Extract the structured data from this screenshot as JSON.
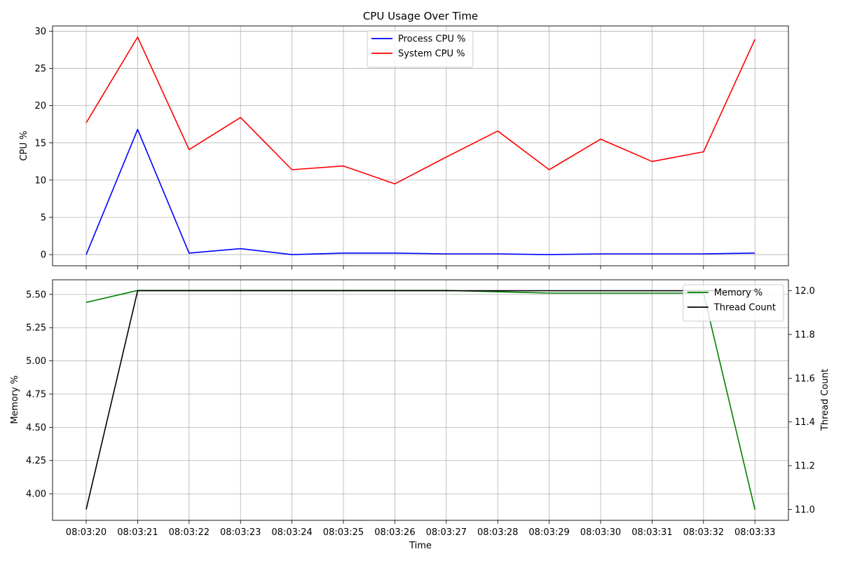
{
  "chart_data": [
    {
      "type": "line",
      "title": "CPU Usage Over Time",
      "xlabel": "",
      "ylabel": "CPU %",
      "categories": [
        "08:03:20",
        "08:03:21",
        "08:03:22",
        "08:03:23",
        "08:03:24",
        "08:03:25",
        "08:03:26",
        "08:03:27",
        "08:03:28",
        "08:03:29",
        "08:03:30",
        "08:03:31",
        "08:03:32",
        "08:03:33"
      ],
      "ylim": [
        -1.5,
        30.7
      ],
      "yticks": [
        0,
        5,
        10,
        15,
        20,
        25,
        30
      ],
      "grid": true,
      "legend_position": "upper center",
      "series": [
        {
          "name": "Process CPU %",
          "color": "#0000ff",
          "values": [
            0.0,
            16.8,
            0.2,
            0.8,
            0.0,
            0.2,
            0.2,
            0.1,
            0.1,
            0.0,
            0.1,
            0.1,
            0.1,
            0.2
          ]
        },
        {
          "name": "System CPU %",
          "color": "#ff0000",
          "values": [
            17.7,
            29.2,
            14.1,
            18.4,
            11.4,
            11.9,
            9.5,
            13.1,
            16.6,
            11.4,
            15.5,
            12.5,
            13.8,
            28.9
          ]
        }
      ]
    },
    {
      "type": "line",
      "title": "",
      "xlabel": "Time",
      "ylabel": "Memory %",
      "y2label": "Thread Count",
      "categories": [
        "08:03:20",
        "08:03:21",
        "08:03:22",
        "08:03:23",
        "08:03:24",
        "08:03:25",
        "08:03:26",
        "08:03:27",
        "08:03:28",
        "08:03:29",
        "08:03:30",
        "08:03:31",
        "08:03:32",
        "08:03:33"
      ],
      "ylim": [
        3.8,
        5.61
      ],
      "yticks": [
        4.0,
        4.25,
        4.5,
        4.75,
        5.0,
        5.25,
        5.5
      ],
      "y2lim": [
        10.95,
        12.05
      ],
      "y2ticks": [
        11.0,
        11.2,
        11.4,
        11.6,
        11.8,
        12.0
      ],
      "grid": true,
      "legend_position": "upper right",
      "series": [
        {
          "name": "Memory %",
          "color": "#008000",
          "axis": "left",
          "values": [
            5.44,
            5.53,
            5.53,
            5.53,
            5.53,
            5.53,
            5.53,
            5.53,
            5.52,
            5.51,
            5.51,
            5.51,
            5.51,
            3.88
          ]
        },
        {
          "name": "Thread Count",
          "color": "#000000",
          "axis": "right",
          "values": [
            11,
            12,
            12,
            12,
            12,
            12,
            12,
            12,
            12,
            12,
            12,
            12,
            12,
            12
          ]
        }
      ]
    }
  ]
}
